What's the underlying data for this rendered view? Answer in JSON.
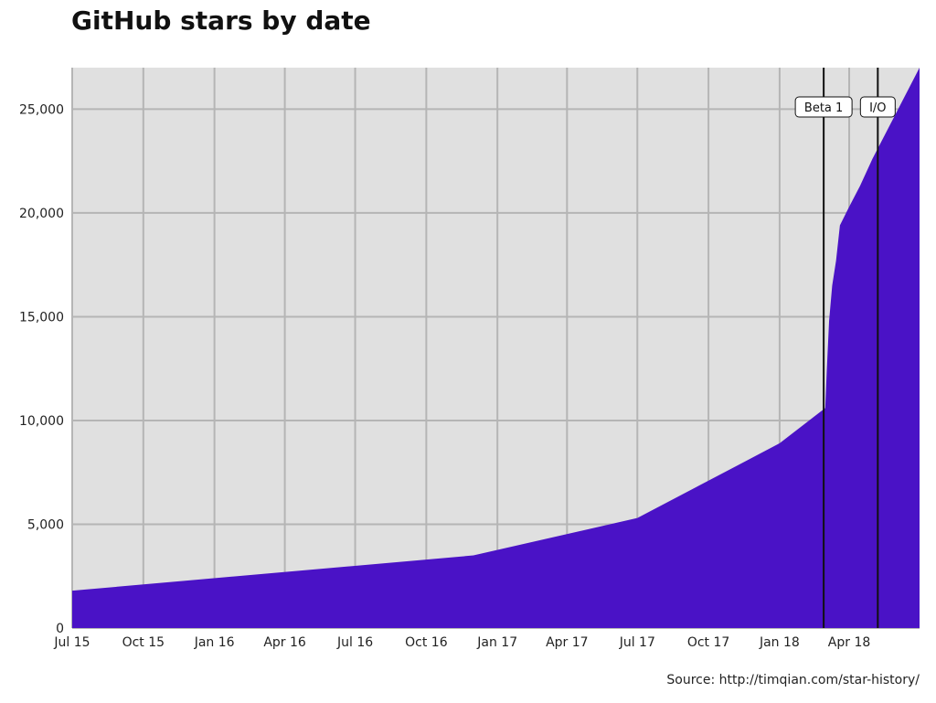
{
  "chart_data": {
    "type": "area",
    "title": "GitHub stars by date",
    "source": "Source: http://timqian.com/star-history/",
    "xlabel": "",
    "ylabel": "",
    "x_ticks": [
      "Jul 15",
      "Oct 15",
      "Jan 16",
      "Apr 16",
      "Jul 16",
      "Oct 16",
      "Jan 17",
      "Apr 17",
      "Jul 17",
      "Oct 17",
      "Jan 18",
      "Apr 18"
    ],
    "y_ticks": [
      "0",
      "5,000",
      "10,000",
      "15,000",
      "20,000",
      "25,000"
    ],
    "ylim": [
      0,
      27000
    ],
    "xlim": [
      "2015-07-01",
      "2018-07-01"
    ],
    "grid": true,
    "colors": {
      "area": "#4a12c6",
      "plot_background": "#e0e0e0",
      "grid": "#b5b5b5",
      "marker_line": "#111111"
    },
    "series": [
      {
        "x": [
          "2015-07-01",
          "2016-12-01",
          "2017-07-01",
          "2018-01-01",
          "2018-03-01",
          "2018-03-03",
          "2018-03-06",
          "2018-03-10",
          "2018-03-15",
          "2018-03-20",
          "2018-04-01",
          "2018-04-15",
          "2018-05-01",
          "2018-07-01"
        ],
        "y": [
          1800,
          3500,
          5300,
          8900,
          10600,
          12400,
          14800,
          16500,
          17700,
          19400,
          20300,
          21300,
          22600,
          27000
        ]
      }
    ],
    "markers": [
      {
        "label": "Beta 1",
        "x": "2018-02-27"
      },
      {
        "label": "I/O",
        "x": "2018-05-08"
      }
    ]
  }
}
